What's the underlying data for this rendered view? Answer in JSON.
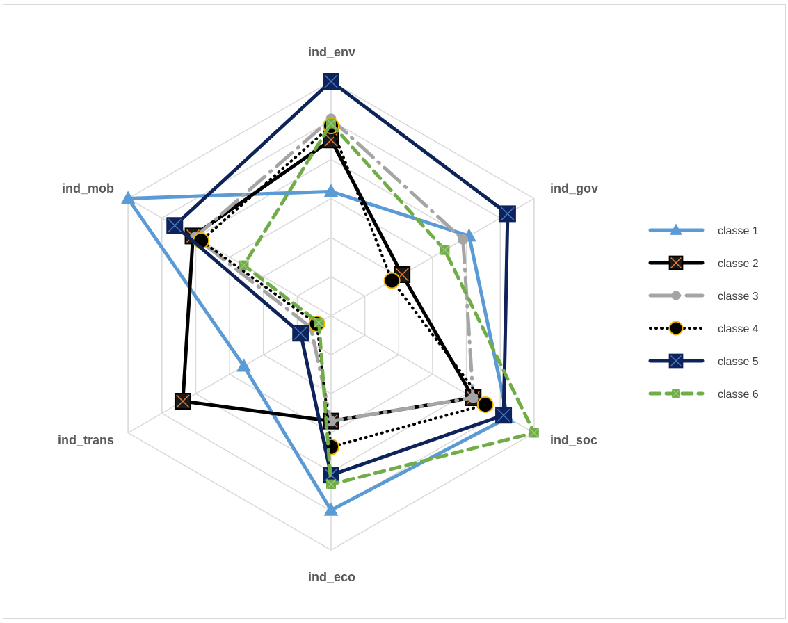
{
  "chart_data": {
    "type": "radar",
    "title": "",
    "axes": [
      "ind_env",
      "ind_gov",
      "ind_soc",
      "ind_eco",
      "ind_trans",
      "ind_mob"
    ],
    "rmax": 1.0,
    "grid_levels": 6,
    "grid": true,
    "legend_position": "right",
    "series": [
      {
        "name": "classe 1",
        "values": [
          0.53,
          0.68,
          0.87,
          0.83,
          0.43,
          1.0
        ],
        "color": "#5b9bd5",
        "dash": "solid",
        "marker": "triangle",
        "width": 5
      },
      {
        "name": "classe 2",
        "values": [
          0.75,
          0.35,
          0.7,
          0.45,
          0.73,
          0.68
        ],
        "color": "#000000",
        "dash": "solid",
        "marker": "square-x",
        "width": 5
      },
      {
        "name": "classe 3",
        "values": [
          0.84,
          0.65,
          0.7,
          0.45,
          0.1,
          0.67
        ],
        "color": "#a5a5a5",
        "dash": "longdash",
        "marker": "circle",
        "width": 5
      },
      {
        "name": "classe 4",
        "values": [
          0.81,
          0.3,
          0.76,
          0.56,
          0.07,
          0.64
        ],
        "color": "#000000",
        "dash": "dot",
        "marker": "circle-gold",
        "width": 4
      },
      {
        "name": "classe 5",
        "values": [
          1.0,
          0.87,
          0.85,
          0.68,
          0.15,
          0.77
        ],
        "color": "#0d2359",
        "dash": "solid",
        "marker": "square-x",
        "width": 5
      },
      {
        "name": "classe 6",
        "values": [
          0.82,
          0.56,
          1.0,
          0.72,
          0.06,
          0.43
        ],
        "color": "#70ad47",
        "dash": "dash",
        "marker": "square-small",
        "width": 5
      }
    ]
  }
}
